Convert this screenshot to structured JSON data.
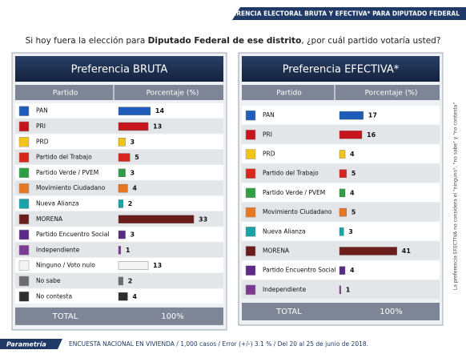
{
  "header": {
    "title": "PREFERENCIA ELECTORAL BRUTA Y EFECTIVA* PARA DIPUTADO FEDERAL",
    "question": [
      "Si hoy fuera la elección para ",
      "Diputado Federal de ese distrito",
      ", ¿por cuál partido votaría usted?"
    ]
  },
  "chart_data": [
    {
      "type": "bar",
      "title": "Preferencia BRUTA",
      "column_headers": [
        "Partido",
        "Porcentaje (%)"
      ],
      "categories": [
        "PAN",
        "PRI",
        "PRD",
        "Partido del Trabajo",
        "Partido Verde / PVEM",
        "Movimiento Ciudadano",
        "Nueva Alianza",
        "MORENA",
        "Partido Encuentro Social",
        "Independiente",
        "Ninguno / Voto nulo",
        "No sabe",
        "No contesta"
      ],
      "values": [
        14,
        13,
        3,
        5,
        3,
        4,
        2,
        33,
        3,
        1,
        13,
        2,
        4
      ],
      "colors": [
        "#1f5bb8",
        "#c4161c",
        "#f2c318",
        "#d9261c",
        "#2f9e44",
        "#e87722",
        "#1aa3a8",
        "#6b1d1b",
        "#5b2a86",
        "#7b3a92",
        "#f4f4f4",
        "#6d6d6d",
        "#2e2e2e"
      ],
      "total_label": "TOTAL",
      "total_value": "100%"
    },
    {
      "type": "bar",
      "title": "Preferencia EFECTIVA*",
      "column_headers": [
        "Partido",
        "Porcentaje (%)"
      ],
      "categories": [
        "PAN",
        "PRI",
        "PRD",
        "Partido del Trabajo",
        "Partido Verde / PVEM",
        "Movimiento Ciudadano",
        "Nueva Alianza",
        "MORENA",
        "Partido Encuentro Social",
        "Independiente"
      ],
      "values": [
        17,
        16,
        4,
        5,
        4,
        5,
        3,
        41,
        4,
        1
      ],
      "colors": [
        "#1f5bb8",
        "#c4161c",
        "#f2c318",
        "#d9261c",
        "#2f9e44",
        "#e87722",
        "#1aa3a8",
        "#6b1d1b",
        "#5b2a86",
        "#7b3a92"
      ],
      "total_label": "TOTAL",
      "total_value": "100%"
    }
  ],
  "side_note": "La preferencia EFECTIVA no considera el \"ninguno\", \"no sabe\" y \"no contesta\"",
  "footer": {
    "brand": "Parametría",
    "text": "ENCUESTA NACIONAL EN VIVIENDA / 1,000 casos / Error (+/-) 3.1 % / Del 20 al 25 de junio de 2018."
  }
}
